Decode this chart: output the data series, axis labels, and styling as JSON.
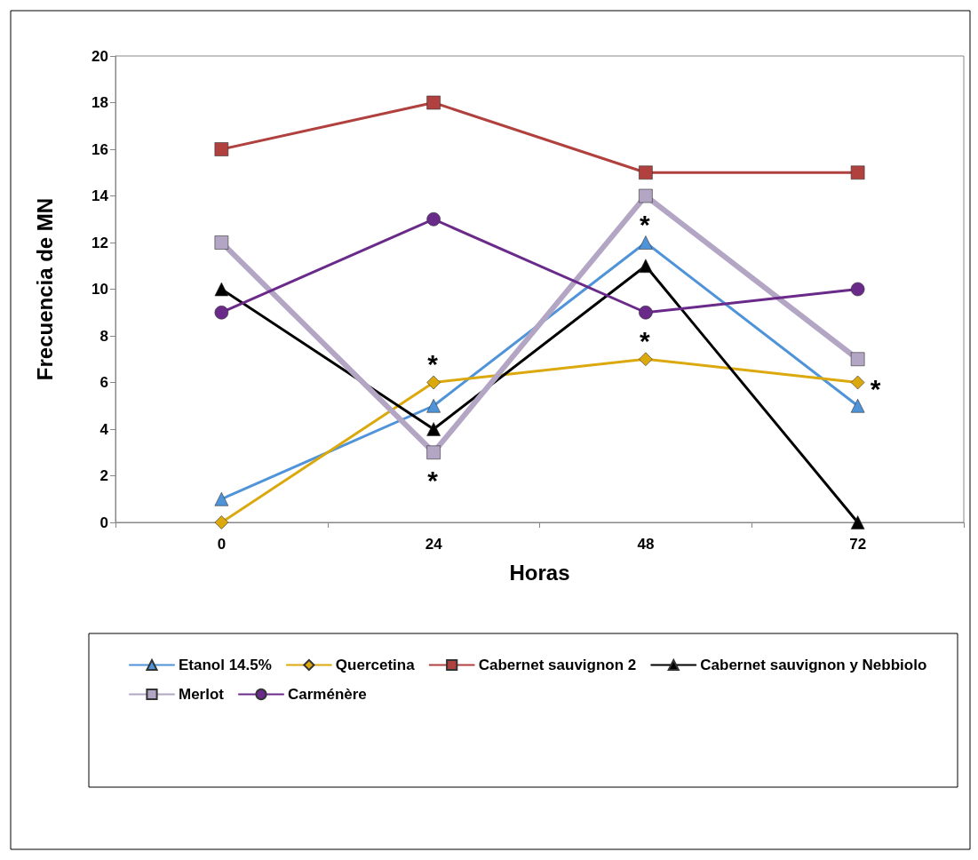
{
  "chart_data": {
    "type": "line",
    "xlabel": "Horas",
    "ylabel": "Frecuencia de MN",
    "categories": [
      "0",
      "24",
      "48",
      "72"
    ],
    "ylim": [
      0,
      20
    ],
    "yticks": [
      0,
      2,
      4,
      6,
      8,
      10,
      12,
      14,
      16,
      18,
      20
    ],
    "grid": false,
    "legend": "bottom",
    "line_style": "solid",
    "series": [
      {
        "name": "Etanol 14.5%",
        "color": "#4f94d8",
        "marker": "triangle",
        "values": [
          1,
          5,
          12,
          5
        ]
      },
      {
        "name": "Quercetina",
        "color": "#dba90e",
        "marker": "diamond",
        "values": [
          0,
          6,
          7,
          6
        ]
      },
      {
        "name": "Cabernet sauvignon 2",
        "color": "#b0413e",
        "marker": "square",
        "values": [
          16,
          18,
          15,
          15
        ]
      },
      {
        "name": "Cabernet sauvignon y Nebbiolo",
        "color": "#000000",
        "marker": "triangle",
        "values": [
          10,
          4,
          11,
          0
        ]
      },
      {
        "name": "Merlot",
        "color": "#b3a5c4",
        "marker": "square",
        "values": [
          12,
          3,
          14,
          7
        ]
      },
      {
        "name": "Carménère",
        "color": "#6a2a8a",
        "marker": "circle",
        "values": [
          9,
          13,
          9,
          10
        ]
      }
    ],
    "annotations": [
      {
        "text": "*",
        "x": "24",
        "y": 6
      },
      {
        "text": "*",
        "x": "24",
        "y": 3
      },
      {
        "text": "*",
        "x": "48",
        "y": 12
      },
      {
        "text": "*",
        "x": "48",
        "y": 7
      },
      {
        "text": "*",
        "x": "72",
        "y": 6
      }
    ]
  }
}
